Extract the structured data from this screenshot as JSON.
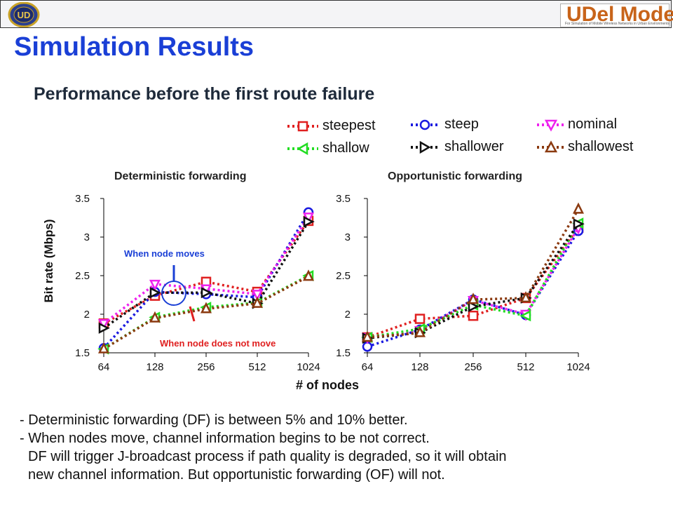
{
  "header": {
    "logo_left": "UD",
    "logo_right_brand": "UDel Models",
    "logo_right_tagline": "For Simulation of Mobile Wireless Networks in Urban Environments"
  },
  "title": "Simulation Results",
  "subtitle": "Performance before the first route failure",
  "ylabel": "Bit rate (Mbps)",
  "xlabel": "# of nodes",
  "annotations": {
    "node_moves": "When node moves",
    "node_not_move": "When node does not move"
  },
  "legend": [
    {
      "name": "steepest",
      "color": "#e02020",
      "marker": "square"
    },
    {
      "name": "steep",
      "color": "#1a1ae0",
      "marker": "circle"
    },
    {
      "name": "nominal",
      "color": "#ee22ee",
      "marker": "triangle-down"
    },
    {
      "name": "shallow",
      "color": "#22dd22",
      "marker": "triangle-left"
    },
    {
      "name": "shallower",
      "color": "#111111",
      "marker": "triangle-right"
    },
    {
      "name": "shallowest",
      "color": "#8b3a10",
      "marker": "triangle-up"
    }
  ],
  "bullets": [
    "- Deterministic forwarding (DF) is between 5% and 10% better.",
    "- When nodes move, channel information begins to be not correct.",
    "DF will trigger J-broadcast process if path quality is degraded, so it will obtain",
    "new channel information. But opportunistic forwarding (OF) will not."
  ],
  "chart_data": [
    {
      "type": "line",
      "title": "Deterministic forwarding",
      "categories": [
        "64",
        "128",
        "256",
        "512",
        "1024"
      ],
      "ylim": [
        1.5,
        3.5
      ],
      "yticks": [
        "1.5",
        "2",
        "2.5",
        "3",
        "3.5"
      ],
      "series": [
        {
          "name": "steepest",
          "values": [
            1.88,
            2.24,
            2.42,
            2.29,
            3.21
          ]
        },
        {
          "name": "steep",
          "values": [
            1.56,
            2.29,
            2.26,
            2.22,
            3.32
          ]
        },
        {
          "name": "nominal",
          "values": [
            1.88,
            2.39,
            2.33,
            2.26,
            3.26
          ]
        },
        {
          "name": "shallow",
          "values": [
            1.55,
            1.96,
            2.09,
            2.15,
            2.5
          ]
        },
        {
          "name": "shallower",
          "values": [
            1.82,
            2.28,
            2.28,
            2.14,
            3.2
          ]
        },
        {
          "name": "shallowest",
          "values": [
            1.55,
            1.95,
            2.07,
            2.14,
            2.49
          ]
        }
      ]
    },
    {
      "type": "line",
      "title": "Opportunistic forwarding",
      "categories": [
        "64",
        "128",
        "256",
        "512",
        "1024"
      ],
      "ylim": [
        1.5,
        3.5
      ],
      "yticks": [
        "1.5",
        "2",
        "2.5",
        "3",
        "3.5"
      ],
      "series": [
        {
          "name": "steepest",
          "values": [
            1.7,
            1.94,
            1.98,
            2.21,
            3.12
          ]
        },
        {
          "name": "steep",
          "values": [
            1.58,
            1.8,
            2.19,
            1.99,
            3.08
          ]
        },
        {
          "name": "nominal",
          "values": [
            1.7,
            1.79,
            2.18,
            2.0,
            3.12
          ]
        },
        {
          "name": "shallow",
          "values": [
            1.7,
            1.81,
            2.12,
            1.98,
            3.18
          ]
        },
        {
          "name": "shallower",
          "values": [
            1.69,
            1.76,
            2.1,
            2.21,
            3.17
          ]
        },
        {
          "name": "shallowest",
          "values": [
            1.7,
            1.76,
            2.19,
            2.21,
            3.36
          ]
        }
      ]
    }
  ]
}
